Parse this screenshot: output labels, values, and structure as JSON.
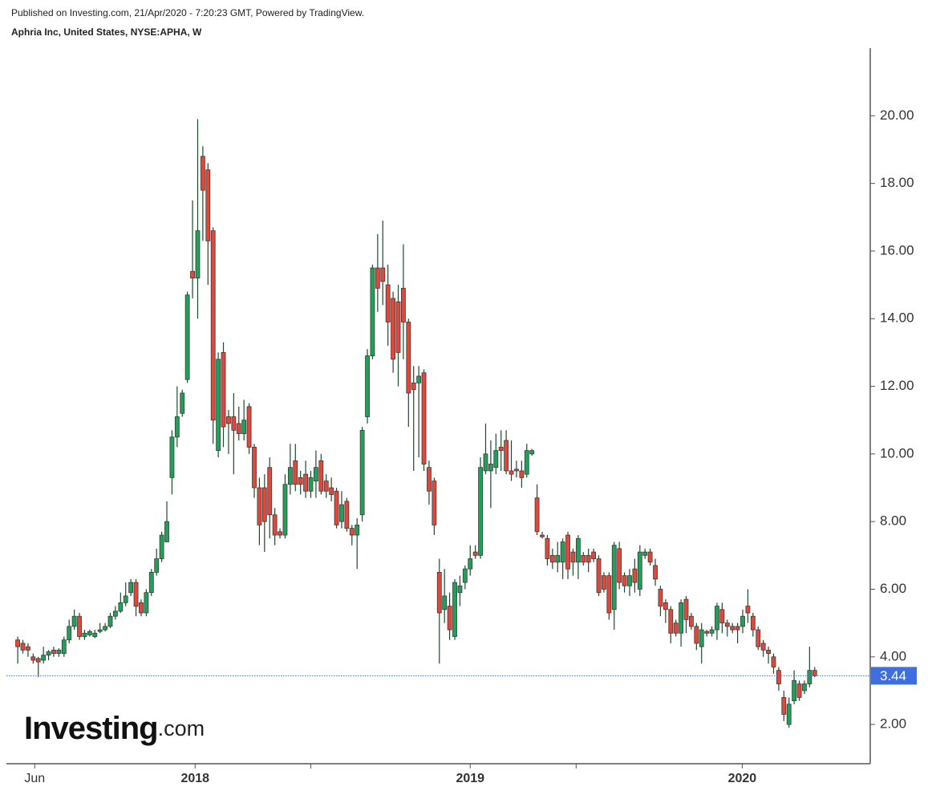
{
  "chart_data": {
    "type": "candlestick",
    "source": "Published on Investing.com, 21/Apr/2020 - 7:20:23 GMT, Powered by TradingView.",
    "title": "Aphria Inc, United States, NYSE:APHA, W",
    "open": [
      4.5,
      4.4,
      4.3,
      4.0,
      3.95,
      3.9,
      4.05,
      4.2,
      4.1,
      4.1,
      4.5,
      4.9,
      5.2,
      4.6,
      4.65,
      4.6,
      4.75,
      4.8,
      4.9,
      5.2,
      5.35,
      5.6,
      5.9,
      6.2,
      5.6,
      5.3,
      5.9,
      6.5,
      6.9,
      7.4,
      9.3,
      10.5,
      11.2,
      12.2,
      15.4,
      15.2,
      18.8,
      18.4,
      16.6,
      10.1,
      13.0,
      11.1,
      11.1,
      10.9,
      10.6,
      11.4,
      10.2,
      9.0,
      9.0,
      9.6,
      8.2,
      7.7,
      7.6,
      9.1,
      9.8,
      9.3,
      9.4,
      8.9,
      9.2,
      9.8,
      9.2,
      9.0,
      8.9,
      8.0,
      8.6,
      7.8,
      7.6,
      8.2,
      11.1,
      12.9,
      15.5,
      15.5,
      15.0,
      14.6,
      14.5,
      14.9,
      13.9,
      12.1,
      12.1,
      12.4,
      9.6,
      9.2,
      6.5,
      5.4,
      5.5,
      4.6,
      5.9,
      6.2,
      6.6,
      7.1,
      7.0,
      9.5,
      9.5,
      9.6,
      10.2,
      10.4,
      9.5,
      9.55,
      9.5,
      9.4,
      10.0,
      8.7,
      7.6,
      7.5,
      7.0,
      6.8,
      6.8,
      7.6,
      7.1,
      6.8,
      7.0,
      7.0,
      7.1,
      6.9,
      6.4,
      6.4,
      5.4,
      7.2,
      6.4,
      6.1,
      6.6,
      6.0,
      7.0,
      7.1,
      6.7,
      6.0,
      5.6,
      5.4,
      5.0,
      4.7,
      5.7,
      5.2,
      4.9,
      4.3,
      4.75,
      4.7,
      4.8,
      5.4,
      5.0,
      4.9,
      4.9,
      4.9,
      5.5,
      5.2,
      4.8,
      4.4,
      4.2,
      4.0,
      3.6,
      2.8,
      2.0,
      2.7,
      3.2,
      3.0,
      3.2,
      3.6
    ],
    "high": [
      4.6,
      4.5,
      4.4,
      4.1,
      4.0,
      4.3,
      4.2,
      4.3,
      4.25,
      4.6,
      5.1,
      5.4,
      5.3,
      4.8,
      4.8,
      4.8,
      5.0,
      5.0,
      5.3,
      5.5,
      5.9,
      6.2,
      6.3,
      6.3,
      5.7,
      6.0,
      6.6,
      7.2,
      7.7,
      8.6,
      10.7,
      12.0,
      11.9,
      14.8,
      17.5,
      19.9,
      19.1,
      18.6,
      16.7,
      13.0,
      13.3,
      11.3,
      11.8,
      11.4,
      11.6,
      11.5,
      10.3,
      9.3,
      9.4,
      9.9,
      8.4,
      7.8,
      9.4,
      10.3,
      10.3,
      9.5,
      9.8,
      9.5,
      10.1,
      10.0,
      9.4,
      9.3,
      9.0,
      8.9,
      8.7,
      7.9,
      8.1,
      10.8,
      13.1,
      15.6,
      16.5,
      16.9,
      15.6,
      14.8,
      15.0,
      16.2,
      14.0,
      12.6,
      12.6,
      12.5,
      9.8,
      9.3,
      6.9,
      6.6,
      5.9,
      6.3,
      6.4,
      6.7,
      7.3,
      7.3,
      9.9,
      10.9,
      10.4,
      10.6,
      10.7,
      10.7,
      10.4,
      9.8,
      9.8,
      10.3,
      10.15,
      9.1,
      7.7,
      7.6,
      7.2,
      7.4,
      7.5,
      7.7,
      7.2,
      7.6,
      7.1,
      7.2,
      7.2,
      7.0,
      6.5,
      6.5,
      7.4,
      7.4,
      6.5,
      6.6,
      6.9,
      7.3,
      7.2,
      7.2,
      6.9,
      6.1,
      5.7,
      5.5,
      5.1,
      5.7,
      5.8,
      5.3,
      5.0,
      5.0,
      4.8,
      4.9,
      5.6,
      5.6,
      5.1,
      5.0,
      5.0,
      5.4,
      6.0,
      5.3,
      4.9,
      4.5,
      4.3,
      4.1,
      3.7,
      3.0,
      2.8,
      3.6,
      3.3,
      3.3,
      4.3,
      3.7
    ],
    "low": [
      3.8,
      4.1,
      4.0,
      3.8,
      3.4,
      3.8,
      3.9,
      4.0,
      4.0,
      4.0,
      4.4,
      4.8,
      4.5,
      4.5,
      4.6,
      4.55,
      4.7,
      4.75,
      4.85,
      5.1,
      5.3,
      5.5,
      5.8,
      5.2,
      5.2,
      5.2,
      5.8,
      6.4,
      6.8,
      7.4,
      8.8,
      10.2,
      11.1,
      12.1,
      14.6,
      14.0,
      16.3,
      15.0,
      10.3,
      9.9,
      10.2,
      10.0,
      9.4,
      10.4,
      10.4,
      10.0,
      8.7,
      7.3,
      7.1,
      7.5,
      7.3,
      7.5,
      7.5,
      8.8,
      8.9,
      8.8,
      8.7,
      8.7,
      8.7,
      8.8,
      8.7,
      8.6,
      7.8,
      7.8,
      7.7,
      7.3,
      6.6,
      8.0,
      10.9,
      12.8,
      14.2,
      14.4,
      13.2,
      12.4,
      12.0,
      12.8,
      10.8,
      9.5,
      9.9,
      9.5,
      8.5,
      7.6,
      3.8,
      5.0,
      4.5,
      4.5,
      5.5,
      6.0,
      6.4,
      6.9,
      6.9,
      9.4,
      8.4,
      9.4,
      9.5,
      9.4,
      9.2,
      9.3,
      9.0,
      9.3,
      9.95,
      7.6,
      7.5,
      6.7,
      6.6,
      6.5,
      6.3,
      6.3,
      6.4,
      6.3,
      6.7,
      6.5,
      6.8,
      5.8,
      5.9,
      5.1,
      4.8,
      6.0,
      5.9,
      5.8,
      5.9,
      5.8,
      6.9,
      6.7,
      6.1,
      5.2,
      5.0,
      4.4,
      4.6,
      4.3,
      4.7,
      4.8,
      4.2,
      3.8,
      4.6,
      4.6,
      4.5,
      4.7,
      4.6,
      4.7,
      4.4,
      4.7,
      5.0,
      4.6,
      4.2,
      4.0,
      3.8,
      3.5,
      3.0,
      2.1,
      1.9,
      2.6,
      2.7,
      2.9,
      3.1,
      3.4
    ],
    "close": [
      4.3,
      4.2,
      4.2,
      3.9,
      3.85,
      4.05,
      4.15,
      4.1,
      4.2,
      4.5,
      4.9,
      5.2,
      4.6,
      4.7,
      4.75,
      4.7,
      4.8,
      4.9,
      5.2,
      5.35,
      5.6,
      5.8,
      6.2,
      5.5,
      5.3,
      5.9,
      6.5,
      6.9,
      7.6,
      8.0,
      10.5,
      11.1,
      11.8,
      14.7,
      15.2,
      16.6,
      17.8,
      16.3,
      11.0,
      12.8,
      10.8,
      10.9,
      10.7,
      10.6,
      11.0,
      10.2,
      9.0,
      7.9,
      8.0,
      8.2,
      7.6,
      7.6,
      9.1,
      9.6,
      9.1,
      9.1,
      8.9,
      9.3,
      9.6,
      8.9,
      8.9,
      8.8,
      7.9,
      8.5,
      7.8,
      7.6,
      7.9,
      10.7,
      12.9,
      15.5,
      14.9,
      15.1,
      13.9,
      12.8,
      13.0,
      13.9,
      11.8,
      11.9,
      12.3,
      9.7,
      8.9,
      7.9,
      5.3,
      5.8,
      4.8,
      6.2,
      6.1,
      6.6,
      6.9,
      7.0,
      9.6,
      10.0,
      9.7,
      10.1,
      10.1,
      9.5,
      9.4,
      9.5,
      9.3,
      10.1,
      10.1,
      7.7,
      7.55,
      6.9,
      6.8,
      7.0,
      7.4,
      6.6,
      6.8,
      7.5,
      6.8,
      6.8,
      6.9,
      5.9,
      6.0,
      5.3,
      7.3,
      6.2,
      6.1,
      6.4,
      6.2,
      7.1,
      7.1,
      6.8,
      6.3,
      5.5,
      5.4,
      4.7,
      4.7,
      5.6,
      5.1,
      4.9,
      4.4,
      4.8,
      4.7,
      4.8,
      5.5,
      5.0,
      4.9,
      4.8,
      4.8,
      5.2,
      5.3,
      4.8,
      4.3,
      4.2,
      4.1,
      3.7,
      3.2,
      2.3,
      2.6,
      3.3,
      2.8,
      3.2,
      3.6,
      3.44
    ],
    "up_color": "#22a05a",
    "down_color": "#e0483c",
    "wick_color": "#1d4a2c",
    "outline_color": "#3a3a3a",
    "last_price": 3.44,
    "last_price_color": "#3e6fdc",
    "ylim": [
      0.84,
      22
    ],
    "yticks": [
      {
        "value": 2,
        "label": "2.00"
      },
      {
        "value": 4,
        "label": "4.00"
      },
      {
        "value": 6,
        "label": "6.00"
      },
      {
        "value": 8,
        "label": "8.00"
      },
      {
        "value": 10,
        "label": "10.00"
      },
      {
        "value": 12,
        "label": "12.00"
      },
      {
        "value": 14,
        "label": "14.00"
      },
      {
        "value": 16,
        "label": "16.00"
      },
      {
        "value": 18,
        "label": "18.00"
      },
      {
        "value": 20,
        "label": "20.00"
      }
    ],
    "xlim": [
      -2.2,
      165.8
    ],
    "xticks": [
      {
        "value": 3.3,
        "label": "Jun"
      },
      {
        "value": 34.5,
        "label": "2018"
      },
      {
        "value": 88,
        "label": "2019"
      },
      {
        "value": 140.9,
        "label": "2020"
      }
    ],
    "xminor_ticks": [
      57,
      108.6
    ]
  },
  "logo": {
    "name": "Investing",
    "suffix": ".com"
  }
}
